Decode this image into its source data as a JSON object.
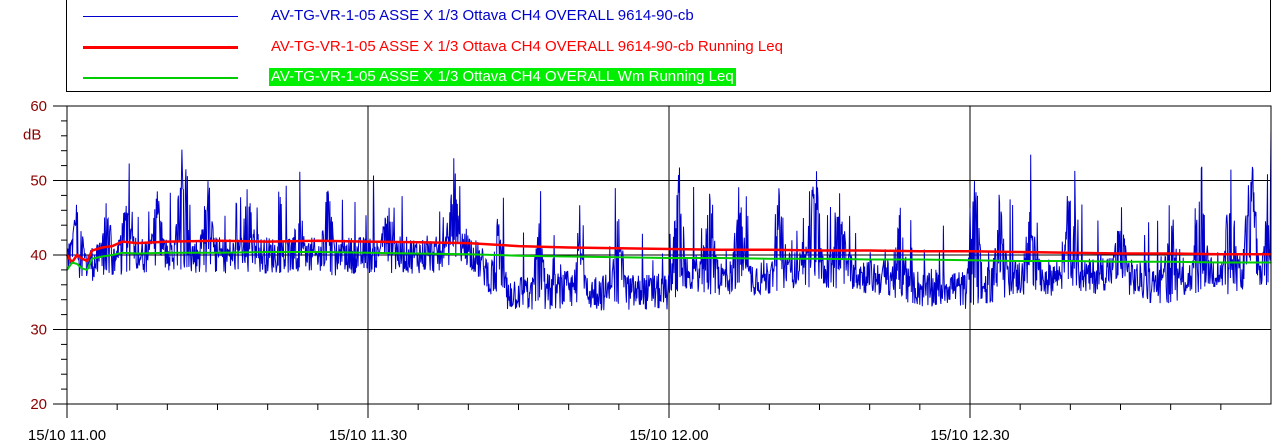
{
  "chart_data": {
    "type": "line",
    "xlabel": "",
    "ylabel": "dB",
    "ylim": [
      20,
      60
    ],
    "y_ticks": [
      {
        "label": "20",
        "value": 20
      },
      {
        "label": "30",
        "value": 30
      },
      {
        "label": "40",
        "value": 40
      },
      {
        "label": "50",
        "value": 50
      },
      {
        "label": "60",
        "value": 60
      }
    ],
    "x_range_minutes": [
      0,
      120
    ],
    "x_ticks": [
      {
        "label": "15/10 11.00",
        "minute": 0
      },
      {
        "label": "15/10 11.30",
        "minute": 30
      },
      {
        "label": "15/10 12.00",
        "minute": 60
      },
      {
        "label": "15/10 12.30",
        "minute": 90
      }
    ],
    "grid": true,
    "legend_position": "top",
    "series": [
      {
        "name": "AV-TG-VR-1-05 ASSE X 1/3 Ottava CH4 OVERALL 9614-90-cb",
        "color": "#0000cc",
        "style": "noisy-level",
        "points": [
          [
            0,
            40
          ],
          [
            2,
            39
          ],
          [
            4,
            39
          ],
          [
            6,
            40
          ],
          [
            8,
            40
          ],
          [
            10,
            40
          ],
          [
            12,
            40
          ],
          [
            14,
            40
          ],
          [
            16,
            40
          ],
          [
            18,
            40
          ],
          [
            20,
            40
          ],
          [
            22,
            40
          ],
          [
            24,
            40
          ],
          [
            26,
            39.5
          ],
          [
            28,
            40
          ],
          [
            30,
            40
          ],
          [
            32,
            40
          ],
          [
            34,
            40
          ],
          [
            36,
            40
          ],
          [
            38,
            40
          ],
          [
            40,
            41
          ],
          [
            42,
            37.5
          ],
          [
            44,
            35
          ],
          [
            46,
            35
          ],
          [
            48,
            35
          ],
          [
            50,
            35.5
          ],
          [
            52,
            35
          ],
          [
            54,
            35
          ],
          [
            56,
            35
          ],
          [
            58,
            35
          ],
          [
            60,
            35
          ],
          [
            62,
            38
          ],
          [
            64,
            37
          ],
          [
            66,
            37
          ],
          [
            68,
            37
          ],
          [
            70,
            37
          ],
          [
            72,
            38
          ],
          [
            74,
            38
          ],
          [
            76,
            38
          ],
          [
            78,
            38
          ],
          [
            80,
            37
          ],
          [
            82,
            37
          ],
          [
            84,
            36
          ],
          [
            86,
            35
          ],
          [
            88,
            36
          ],
          [
            90,
            35
          ],
          [
            92,
            36
          ],
          [
            94,
            37
          ],
          [
            96,
            37
          ],
          [
            98,
            37
          ],
          [
            100,
            38
          ],
          [
            102,
            37
          ],
          [
            104,
            38
          ],
          [
            106,
            37
          ],
          [
            108,
            36
          ],
          [
            110,
            36
          ],
          [
            112,
            37
          ],
          [
            114,
            38
          ],
          [
            116,
            37
          ],
          [
            118,
            38
          ],
          [
            120,
            38
          ]
        ],
        "peaks": [
          [
            1,
            48
          ],
          [
            4,
            49
          ],
          [
            6,
            50
          ],
          [
            9,
            49
          ],
          [
            11.5,
            55
          ],
          [
            14,
            52
          ],
          [
            18,
            53
          ],
          [
            23,
            48
          ],
          [
            26,
            50
          ],
          [
            32,
            49
          ],
          [
            38.5,
            55
          ],
          [
            43,
            46
          ],
          [
            47,
            45
          ],
          [
            51,
            44
          ],
          [
            55,
            47
          ],
          [
            61,
            53
          ],
          [
            64,
            50
          ],
          [
            67,
            50
          ],
          [
            71,
            52
          ],
          [
            74.5,
            56
          ],
          [
            77,
            50
          ],
          [
            83,
            47
          ],
          [
            90.5,
            53
          ],
          [
            93,
            49
          ],
          [
            96,
            48
          ],
          [
            100,
            49
          ],
          [
            105,
            47
          ],
          [
            110,
            49
          ],
          [
            113,
            54
          ],
          [
            116,
            53
          ],
          [
            118,
            56
          ],
          [
            120,
            58
          ]
        ]
      },
      {
        "name": "AV-TG-VR-1-05 ASSE X 1/3 Ottava CH4 OVERALL 9614-90-cb Running Leq",
        "color": "#ff0000",
        "style": "line",
        "points": [
          [
            0,
            40
          ],
          [
            0.5,
            39
          ],
          [
            1,
            40
          ],
          [
            1.5,
            39.5
          ],
          [
            2,
            39.2
          ],
          [
            2.5,
            40.6
          ],
          [
            3.5,
            41
          ],
          [
            4.5,
            41.2
          ],
          [
            5.5,
            41.8
          ],
          [
            7,
            41.6
          ],
          [
            10,
            41.8
          ],
          [
            15,
            41.9
          ],
          [
            20,
            41.8
          ],
          [
            25,
            41.9
          ],
          [
            30,
            41.8
          ],
          [
            35,
            41.7
          ],
          [
            40,
            41.6
          ],
          [
            45,
            41.2
          ],
          [
            50,
            41
          ],
          [
            55,
            40.9
          ],
          [
            60,
            40.8
          ],
          [
            65,
            40.7
          ],
          [
            70,
            40.7
          ],
          [
            75,
            40.6
          ],
          [
            80,
            40.6
          ],
          [
            85,
            40.5
          ],
          [
            90,
            40.5
          ],
          [
            95,
            40.4
          ],
          [
            100,
            40.3
          ],
          [
            105,
            40.2
          ],
          [
            110,
            40.2
          ],
          [
            115,
            40.1
          ],
          [
            120,
            40.1
          ]
        ]
      },
      {
        "name": "AV-TG-VR-1-05 ASSE X 1/3 Ottava CH4 OVERALL Wm Running Leq",
        "color": "#00cc00",
        "style": "line",
        "highlight": "#00ee00",
        "points": [
          [
            0,
            38
          ],
          [
            0.5,
            39
          ],
          [
            1,
            38.8
          ],
          [
            1.5,
            38.2
          ],
          [
            2,
            38
          ],
          [
            2.5,
            39.5
          ],
          [
            3.5,
            39.8
          ],
          [
            4.5,
            40
          ],
          [
            5.5,
            40.3
          ],
          [
            7,
            40.2
          ],
          [
            10,
            40.3
          ],
          [
            15,
            40.3
          ],
          [
            20,
            40.4
          ],
          [
            25,
            40.4
          ],
          [
            30,
            40.3
          ],
          [
            35,
            40.2
          ],
          [
            40,
            40.1
          ],
          [
            45,
            39.9
          ],
          [
            50,
            39.8
          ],
          [
            55,
            39.7
          ],
          [
            60,
            39.6
          ],
          [
            65,
            39.6
          ],
          [
            70,
            39.5
          ],
          [
            75,
            39.5
          ],
          [
            80,
            39.4
          ],
          [
            85,
            39.4
          ],
          [
            90,
            39.3
          ],
          [
            95,
            39.2
          ],
          [
            100,
            39.2
          ],
          [
            105,
            39.1
          ],
          [
            110,
            39.1
          ],
          [
            115,
            39
          ],
          [
            120,
            39
          ]
        ]
      }
    ]
  },
  "colors": {
    "axis": "#000000",
    "tick_label": "#8b0000",
    "grid": "#000000"
  }
}
